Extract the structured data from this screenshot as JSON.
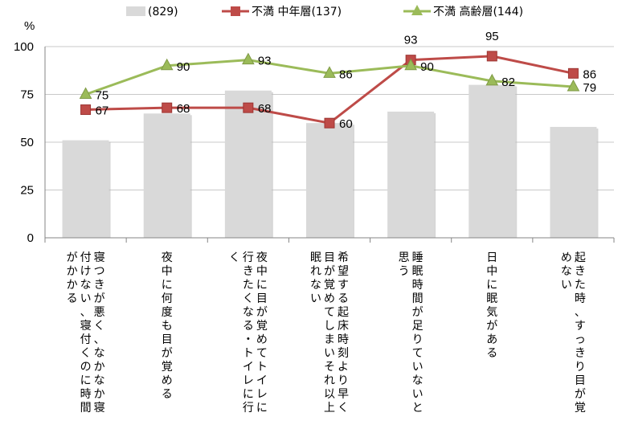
{
  "chart_data": {
    "type": "bar",
    "y_unit": "%",
    "ylim": [
      0,
      100
    ],
    "y_ticks": [
      0,
      25,
      50,
      75,
      100
    ],
    "grid": true,
    "legend_position": "top",
    "categories": [
      [
        "寝つきが悪く、なかなか寝",
        "付けない、寝付くのに時間",
        "がかかる"
      ],
      [
        "夜中に何度も目が覚める"
      ],
      [
        "夜中に目が覚めてトイレに",
        "行きたくなる・トイレに行",
        "く"
      ],
      [
        "希望する起床時刻より早く",
        "目が覚めてしまいそれ以上",
        "眠れない"
      ],
      [
        "睡眠時間が足りていないと",
        "思う"
      ],
      [
        "日中に眠気がある"
      ],
      [
        "起きた時、すっきり目が覚",
        "めない"
      ]
    ],
    "series": [
      {
        "name": "(829)",
        "kind": "bar",
        "color": "#d9d9d9",
        "values": [
          51,
          65,
          77,
          60,
          66,
          80,
          58
        ]
      },
      {
        "name": "不満 中年層(137)",
        "kind": "line",
        "marker": "square",
        "color": "#be4b48",
        "values": [
          67,
          68,
          68,
          60,
          93,
          95,
          86
        ]
      },
      {
        "name": "不満 高齢層(144)",
        "kind": "line",
        "marker": "triangle",
        "color": "#9bbb59",
        "values": [
          75,
          90,
          93,
          86,
          90,
          82,
          79
        ]
      }
    ]
  }
}
